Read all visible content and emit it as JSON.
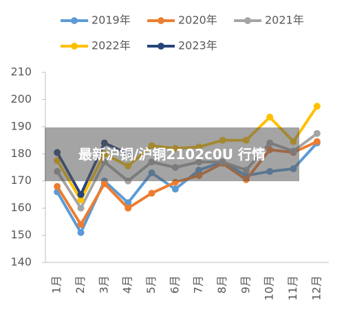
{
  "chart_data": {
    "type": "line",
    "title": "最新沪铜/沪铜2102c0U 行情",
    "categories": [
      "1月",
      "2月",
      "3月",
      "4月",
      "5月",
      "6月",
      "7月",
      "8月",
      "9月",
      "10月",
      "11月",
      "12月"
    ],
    "series": [
      {
        "name": "2019年",
        "color": "#5b9bd5",
        "values": [
          166,
          151,
          170,
          162,
          173,
          167,
          174,
          177,
          172,
          173.5,
          174.5,
          184
        ]
      },
      {
        "name": "2020年",
        "color": "#ed7d31",
        "values": [
          168,
          154,
          169,
          160,
          165.5,
          169.5,
          172,
          176.5,
          170.5,
          181.5,
          180.5,
          184.5
        ]
      },
      {
        "name": "2021年",
        "color": "#a5a5a5",
        "values": [
          173.5,
          160,
          177,
          170,
          177,
          175,
          177,
          177,
          174,
          184,
          181,
          187.5
        ]
      },
      {
        "name": "2022年",
        "color": "#ffc000",
        "values": [
          177.5,
          163,
          180,
          175.5,
          183,
          182,
          182.5,
          185,
          185,
          193.5,
          184.5,
          197.5
        ]
      },
      {
        "name": "2023年",
        "color": "#264478",
        "values": [
          180.5,
          165,
          184,
          180,
          null,
          null,
          null,
          null,
          null,
          null,
          null,
          null
        ]
      }
    ],
    "ylim": [
      140,
      210
    ],
    "yticks": [
      140,
      150,
      160,
      170,
      180,
      190,
      200,
      210
    ]
  }
}
